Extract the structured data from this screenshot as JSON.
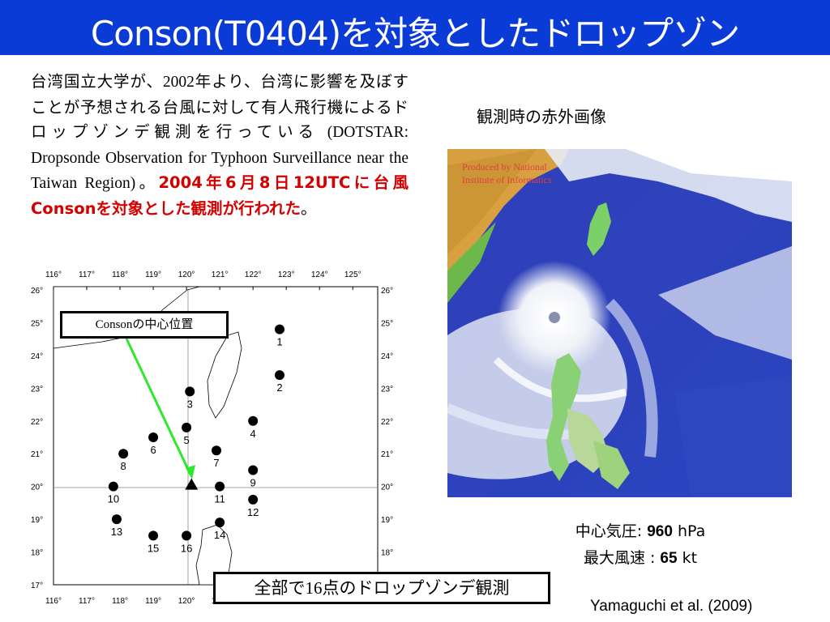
{
  "title": "Conson(T0404)を対象としたドロップゾン",
  "description": {
    "p1": "台湾国立大学が、",
    "year": "2002",
    "p2": "年より、台湾に影響を及ぼすことが予想される台風に対して有人飛行機によるドロップゾンデ観測を行っている",
    "p3": " (DOTSTAR: Dropsonde Observation for Typhoon Surveillance near the Taiwan Region)。",
    "highlight": "2004年6月8日12UTCに台風Consonを対象とした観測が行われた",
    "end": "。"
  },
  "ir_image": {
    "caption": "観測時の赤外画像",
    "credit_line1": "Produced by National",
    "credit_line2": "Institute of Informatics"
  },
  "map": {
    "callout_label": "Consonの中心位置",
    "lon_labels": [
      "116°",
      "117°",
      "118°",
      "119°",
      "120°",
      "121°",
      "122°",
      "123°",
      "124°",
      "125°"
    ],
    "lat_labels": [
      "26°",
      "25°",
      "24°",
      "23°",
      "22°",
      "21°",
      "20°",
      "19°",
      "18°",
      "17°"
    ],
    "dropsondes": [
      {
        "id": "1",
        "lon": 122.8,
        "lat": 24.8
      },
      {
        "id": "2",
        "lon": 122.8,
        "lat": 23.4
      },
      {
        "id": "3",
        "lon": 120.1,
        "lat": 22.9
      },
      {
        "id": "4",
        "lon": 122.0,
        "lat": 22.0
      },
      {
        "id": "5",
        "lon": 120.0,
        "lat": 21.8
      },
      {
        "id": "6",
        "lon": 119.0,
        "lat": 21.5
      },
      {
        "id": "7",
        "lon": 120.9,
        "lat": 21.1
      },
      {
        "id": "8",
        "lon": 118.1,
        "lat": 21.0
      },
      {
        "id": "9",
        "lon": 122.0,
        "lat": 20.5
      },
      {
        "id": "10",
        "lon": 117.8,
        "lat": 20.0
      },
      {
        "id": "11",
        "lon": 121.0,
        "lat": 20.0
      },
      {
        "id": "12",
        "lon": 122.0,
        "lat": 19.6
      },
      {
        "id": "13",
        "lon": 117.9,
        "lat": 19.0
      },
      {
        "id": "14",
        "lon": 121.0,
        "lat": 18.9
      },
      {
        "id": "15",
        "lon": 119.0,
        "lat": 18.5
      },
      {
        "id": "16",
        "lon": 120.0,
        "lat": 18.5
      }
    ],
    "center": {
      "lon": 120.15,
      "lat": 20.05
    }
  },
  "info": {
    "pressure_label": "中心気圧",
    "pressure_value": "960",
    "pressure_unit": " hPa",
    "wind_label": "最大風速 : ",
    "wind_value": "65",
    "wind_unit": " kt"
  },
  "total": {
    "pre": "全部で",
    "count": "16",
    "post": "点のドロップゾンデ観測"
  },
  "citation": "Yamaguchi et al. (2009)"
}
